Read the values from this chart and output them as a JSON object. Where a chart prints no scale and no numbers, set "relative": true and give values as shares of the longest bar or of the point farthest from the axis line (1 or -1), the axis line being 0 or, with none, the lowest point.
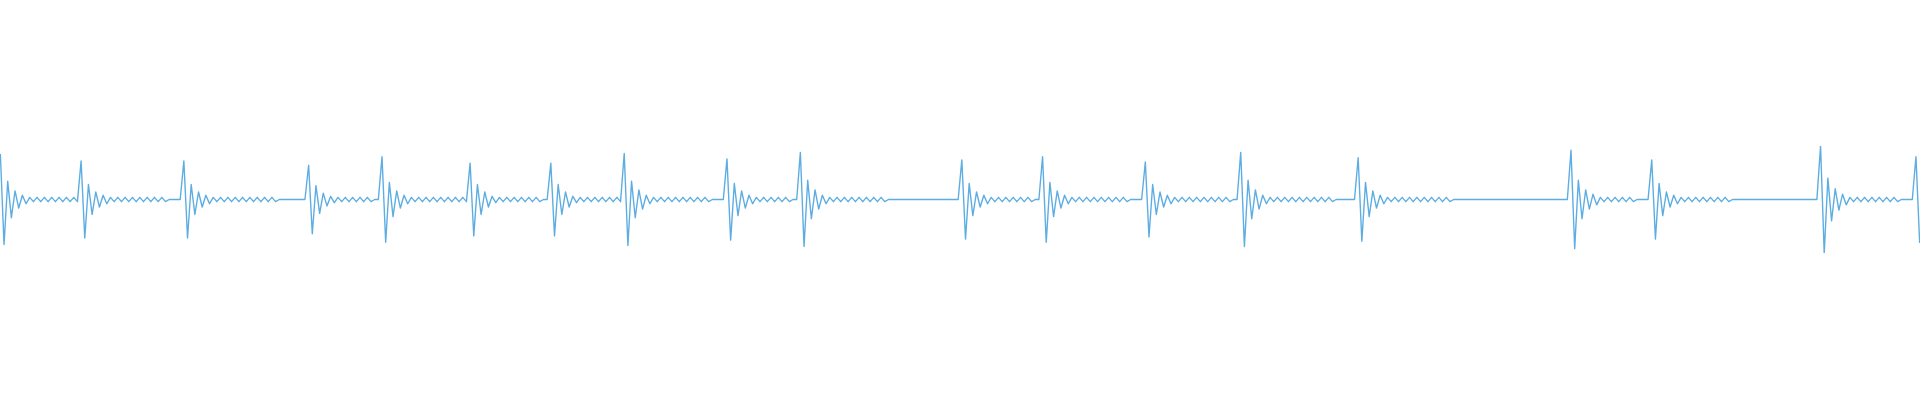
{
  "chart_data": {
    "type": "line",
    "relative": true,
    "categories": [
      null,
      null,
      null,
      null,
      null,
      null,
      null,
      null,
      null,
      null,
      null,
      null,
      null,
      null,
      null,
      null,
      null,
      null,
      null,
      null,
      null,
      null,
      null,
      null,
      null,
      null,
      null,
      null,
      null,
      null,
      null,
      null,
      null,
      null,
      null,
      null,
      null,
      null,
      null,
      null,
      null,
      null,
      null,
      null,
      null,
      null,
      null,
      null,
      null,
      null,
      null,
      null,
      null,
      null,
      null,
      null,
      null,
      null,
      null,
      null,
      null,
      null,
      null,
      null,
      null,
      null,
      null,
      null,
      null,
      null,
      null,
      null,
      null,
      null,
      null,
      null,
      null,
      null,
      null,
      null,
      null,
      null,
      null,
      null,
      null,
      null,
      null,
      null,
      null,
      null,
      null,
      null,
      null,
      null,
      null,
      null,
      null,
      null,
      null,
      null,
      null,
      null,
      null,
      null,
      null,
      null,
      null,
      null,
      null,
      null,
      null,
      null,
      null,
      null,
      null,
      null,
      null,
      null,
      null,
      null,
      null,
      null,
      null,
      null,
      null,
      null,
      null,
      null,
      null,
      null,
      null,
      null,
      null,
      null,
      null,
      null,
      null,
      null,
      null,
      null,
      null,
      null,
      null,
      null,
      null,
      null,
      null,
      null,
      null,
      null,
      null,
      null,
      null,
      null,
      null,
      null,
      null,
      null,
      null,
      null,
      null,
      null,
      null,
      null,
      null,
      null,
      null,
      null,
      null,
      null,
      null,
      null,
      null,
      null,
      null,
      null,
      null,
      null,
      null,
      null,
      null,
      null,
      null,
      null,
      null,
      null,
      null,
      null,
      null,
      null,
      null,
      null,
      null,
      null,
      null,
      null,
      null,
      null,
      null,
      null,
      null,
      null,
      null,
      null,
      null,
      null,
      null,
      null,
      null,
      null,
      null,
      null,
      null,
      null,
      null,
      null,
      null,
      null,
      null,
      null,
      null,
      null,
      null,
      null,
      null,
      null,
      null,
      null,
      null,
      null,
      null,
      null,
      null,
      null,
      null,
      null,
      null,
      null,
      null,
      null,
      null,
      null,
      null,
      null,
      null,
      null,
      null,
      null,
      null,
      null,
      null,
      null,
      null,
      null,
      null,
      null,
      null,
      null,
      null,
      null,
      null,
      null,
      null,
      null,
      null,
      null,
      null,
      null,
      null,
      null,
      null,
      null,
      null,
      null,
      null,
      null,
      null,
      null,
      null,
      null,
      null,
      null,
      null,
      null,
      null,
      null,
      null,
      null,
      null,
      null,
      null,
      null,
      null,
      null,
      null,
      null,
      null,
      null,
      null,
      null,
      null,
      null,
      null,
      null,
      null,
      null,
      null,
      null,
      null,
      null,
      null,
      null,
      null,
      null,
      null,
      null,
      null,
      null,
      null,
      null,
      null,
      null,
      null,
      null,
      null,
      null,
      null,
      null,
      null,
      null,
      null,
      null,
      null,
      null,
      null,
      null,
      null,
      null,
      null,
      null,
      null,
      null,
      null,
      null,
      null,
      null,
      null,
      null,
      null,
      null,
      null,
      null,
      null,
      null,
      null,
      null,
      null,
      null,
      null,
      null,
      null,
      null,
      null,
      null,
      null,
      null,
      null,
      null,
      null,
      null,
      null,
      null,
      null,
      null,
      null,
      null,
      null,
      null,
      null,
      null,
      null,
      null,
      null,
      null,
      null,
      null,
      null,
      null,
      null,
      null,
      null,
      null,
      null,
      null,
      null,
      null,
      null,
      null,
      null,
      null,
      null,
      null,
      null,
      null,
      null,
      null,
      null,
      null,
      null,
      null,
      null,
      null,
      null,
      null,
      null,
      null,
      null,
      null,
      null,
      null,
      null,
      null,
      null,
      null,
      null,
      null,
      null,
      null,
      null,
      null,
      null,
      null,
      null,
      null,
      null,
      null,
      null,
      null,
      null,
      null,
      null,
      null,
      null,
      null,
      null,
      null,
      null,
      null,
      null,
      null,
      null,
      null,
      null,
      null,
      null,
      null,
      null,
      null,
      null,
      null,
      null,
      null,
      null,
      null,
      null,
      null,
      null,
      null,
      null,
      null,
      null,
      null,
      null,
      null,
      null,
      null,
      null,
      null,
      null,
      null,
      null,
      null,
      null,
      null,
      null,
      null,
      null,
      null,
      null,
      null,
      null,
      null,
      null,
      null,
      null,
      null,
      null,
      null,
      null,
      null,
      null,
      null,
      null,
      null,
      null,
      null,
      null,
      null,
      null,
      null,
      null,
      null,
      null,
      null,
      null,
      null,
      null,
      null,
      null,
      null,
      null,
      null,
      null,
      null
    ],
    "series": [
      {
        "color": "#5dade2",
        "values": [
          0.92,
          0.08,
          0.67,
          0.33,
          0.58,
          0.42,
          0.54,
          0.46,
          0.52,
          0.48,
          0.52,
          0.48,
          0.52,
          0.48,
          0.52,
          0.48,
          0.52,
          0.48,
          0.52,
          0.48,
          0.52,
          0.48,
          0.86,
          0.14,
          0.64,
          0.36,
          0.57,
          0.43,
          0.54,
          0.46,
          0.52,
          0.48,
          0.52,
          0.48,
          0.52,
          0.48,
          0.52,
          0.48,
          0.52,
          0.48,
          0.52,
          0.48,
          0.52,
          0.48,
          0.52,
          0.48,
          0.5,
          0.5,
          0.5,
          0.5,
          0.86,
          0.14,
          0.64,
          0.36,
          0.57,
          0.43,
          0.54,
          0.46,
          0.52,
          0.48,
          0.52,
          0.48,
          0.52,
          0.48,
          0.52,
          0.48,
          0.52,
          0.48,
          0.52,
          0.48,
          0.52,
          0.48,
          0.52,
          0.48,
          0.52,
          0.48,
          0.5,
          0.5,
          0.5,
          0.5,
          0.5,
          0.5,
          0.5,
          0.5,
          0.82,
          0.18,
          0.63,
          0.37,
          0.56,
          0.44,
          0.53,
          0.47,
          0.52,
          0.48,
          0.52,
          0.48,
          0.52,
          0.48,
          0.52,
          0.48,
          0.52,
          0.48,
          0.5,
          0.5,
          0.9,
          0.1,
          0.66,
          0.34,
          0.58,
          0.42,
          0.54,
          0.46,
          0.52,
          0.48,
          0.52,
          0.48,
          0.52,
          0.48,
          0.52,
          0.48,
          0.52,
          0.48,
          0.52,
          0.48,
          0.52,
          0.48,
          0.52,
          0.48,
          0.84,
          0.16,
          0.64,
          0.36,
          0.57,
          0.43,
          0.53,
          0.47,
          0.52,
          0.48,
          0.52,
          0.48,
          0.52,
          0.48,
          0.52,
          0.48,
          0.52,
          0.48,
          0.52,
          0.48,
          0.5,
          0.5,
          0.84,
          0.16,
          0.64,
          0.36,
          0.57,
          0.43,
          0.53,
          0.47,
          0.52,
          0.48,
          0.52,
          0.48,
          0.52,
          0.48,
          0.52,
          0.48,
          0.52,
          0.48,
          0.52,
          0.48,
          0.93,
          0.07,
          0.67,
          0.33,
          0.59,
          0.41,
          0.54,
          0.46,
          0.52,
          0.48,
          0.52,
          0.48,
          0.52,
          0.48,
          0.52,
          0.48,
          0.52,
          0.48,
          0.52,
          0.48,
          0.52,
          0.48,
          0.52,
          0.48,
          0.5,
          0.5,
          0.5,
          0.5,
          0.88,
          0.12,
          0.65,
          0.35,
          0.58,
          0.42,
          0.54,
          0.46,
          0.52,
          0.48,
          0.52,
          0.48,
          0.52,
          0.48,
          0.52,
          0.48,
          0.52,
          0.48,
          0.5,
          0.5,
          0.94,
          0.06,
          0.68,
          0.32,
          0.59,
          0.41,
          0.54,
          0.46,
          0.52,
          0.48,
          0.52,
          0.48,
          0.52,
          0.48,
          0.52,
          0.48,
          0.52,
          0.48,
          0.52,
          0.48,
          0.52,
          0.48,
          0.52,
          0.48,
          0.5,
          0.5,
          0.5,
          0.5,
          0.5,
          0.5,
          0.5,
          0.5,
          0.5,
          0.5,
          0.5,
          0.5,
          0.5,
          0.5,
          0.5,
          0.5,
          0.5,
          0.5,
          0.5,
          0.5,
          0.87,
          0.13,
          0.65,
          0.35,
          0.57,
          0.43,
          0.54,
          0.46,
          0.52,
          0.48,
          0.52,
          0.48,
          0.52,
          0.48,
          0.52,
          0.48,
          0.52,
          0.48,
          0.52,
          0.48,
          0.5,
          0.5,
          0.9,
          0.1,
          0.66,
          0.34,
          0.58,
          0.42,
          0.54,
          0.46,
          0.52,
          0.48,
          0.52,
          0.48,
          0.52,
          0.48,
          0.52,
          0.48,
          0.52,
          0.48,
          0.52,
          0.48,
          0.52,
          0.48,
          0.52,
          0.48,
          0.5,
          0.5,
          0.5,
          0.5,
          0.85,
          0.15,
          0.64,
          0.36,
          0.57,
          0.43,
          0.54,
          0.46,
          0.52,
          0.48,
          0.52,
          0.48,
          0.52,
          0.48,
          0.52,
          0.48,
          0.52,
          0.48,
          0.52,
          0.48,
          0.52,
          0.48,
          0.52,
          0.48,
          0.5,
          0.5,
          0.94,
          0.06,
          0.68,
          0.32,
          0.59,
          0.41,
          0.54,
          0.46,
          0.52,
          0.48,
          0.52,
          0.48,
          0.52,
          0.48,
          0.52,
          0.48,
          0.52,
          0.48,
          0.52,
          0.48,
          0.52,
          0.48,
          0.52,
          0.48,
          0.52,
          0.48,
          0.5,
          0.5,
          0.5,
          0.5,
          0.5,
          0.5,
          0.89,
          0.11,
          0.66,
          0.34,
          0.58,
          0.42,
          0.54,
          0.46,
          0.52,
          0.48,
          0.52,
          0.48,
          0.52,
          0.48,
          0.52,
          0.48,
          0.52,
          0.48,
          0.52,
          0.48,
          0.52,
          0.48,
          0.52,
          0.48,
          0.52,
          0.48,
          0.5,
          0.5,
          0.5,
          0.5,
          0.5,
          0.5,
          0.5,
          0.5,
          0.5,
          0.5,
          0.5,
          0.5,
          0.5,
          0.5,
          0.5,
          0.5,
          0.5,
          0.5,
          0.5,
          0.5,
          0.5,
          0.5,
          0.5,
          0.5,
          0.5,
          0.5,
          0.5,
          0.5,
          0.5,
          0.5,
          0.5,
          0.5,
          0.96,
          0.04,
          0.68,
          0.32,
          0.59,
          0.41,
          0.55,
          0.45,
          0.52,
          0.48,
          0.52,
          0.48,
          0.52,
          0.48,
          0.52,
          0.48,
          0.52,
          0.48,
          0.5,
          0.5,
          0.5,
          0.5,
          0.87,
          0.13,
          0.65,
          0.35,
          0.57,
          0.43,
          0.54,
          0.46,
          0.52,
          0.48,
          0.52,
          0.48,
          0.52,
          0.48,
          0.52,
          0.48,
          0.52,
          0.48,
          0.52,
          0.48,
          0.52,
          0.48,
          0.5,
          0.5,
          0.5,
          0.5,
          0.5,
          0.5,
          0.5,
          0.5,
          0.5,
          0.5,
          0.5,
          0.5,
          0.5,
          0.5,
          0.5,
          0.5,
          0.5,
          0.5,
          0.5,
          0.5,
          0.5,
          0.5,
          0.5,
          0.5,
          1.0,
          0.0,
          0.7,
          0.3,
          0.6,
          0.4,
          0.55,
          0.45,
          0.52,
          0.48,
          0.52,
          0.48,
          0.52,
          0.48,
          0.52,
          0.48,
          0.52,
          0.48,
          0.52,
          0.48,
          0.52,
          0.48,
          0.5,
          0.5,
          0.5,
          0.5,
          0.9,
          0.1
        ]
      }
    ]
  }
}
